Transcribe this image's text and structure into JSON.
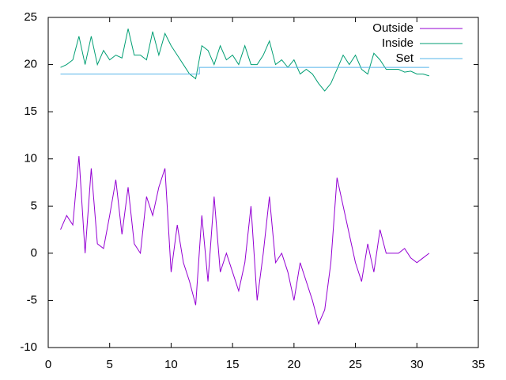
{
  "chart_data": {
    "type": "line",
    "xlim": [
      0,
      35
    ],
    "ylim": [
      -10,
      25
    ],
    "xticks": [
      0,
      5,
      10,
      15,
      20,
      25,
      30,
      35
    ],
    "yticks": [
      -10,
      -5,
      0,
      5,
      10,
      15,
      20,
      25
    ],
    "legend": "top-right",
    "series": [
      {
        "name": "Outside",
        "color": "#9400d3",
        "x": [
          1,
          1.5,
          2,
          2.5,
          3,
          3.5,
          4,
          4.5,
          5,
          5.5,
          6,
          6.5,
          7,
          7.5,
          8,
          8.5,
          9,
          9.5,
          10,
          10.5,
          11,
          11.5,
          12,
          12.5,
          13,
          13.5,
          14,
          14.5,
          15,
          15.5,
          16,
          16.5,
          17,
          17.5,
          18,
          18.5,
          19,
          19.5,
          20,
          20.5,
          21,
          21.5,
          22,
          22.5,
          23,
          23.5,
          24,
          24.5,
          25,
          25.5,
          26,
          26.5,
          27,
          27.5,
          28,
          28.5,
          29,
          29.5,
          30,
          30.5,
          31
        ],
        "values": [
          2.5,
          4,
          3,
          10.3,
          0,
          9,
          1,
          0.5,
          4,
          7.8,
          2,
          7,
          1,
          0,
          6,
          4,
          7,
          9,
          -2,
          3,
          -1,
          -3,
          -5.5,
          4,
          -3,
          6,
          -2,
          0,
          -2,
          -4,
          -1,
          5,
          -5,
          0,
          6,
          -1,
          0,
          -2,
          -5,
          -1,
          -3,
          -5,
          -7.5,
          -6,
          -1,
          8,
          5,
          2,
          -1,
          -3,
          1,
          -2,
          2.5,
          0,
          0,
          0,
          0.5,
          -0.5,
          -1,
          -0.5,
          0
        ]
      },
      {
        "name": "Inside",
        "color": "#009e73",
        "x": [
          1,
          1.5,
          2,
          2.5,
          3,
          3.5,
          4,
          4.5,
          5,
          5.5,
          6,
          6.5,
          7,
          7.5,
          8,
          8.5,
          9,
          9.5,
          10,
          10.5,
          11,
          11.5,
          12,
          12.5,
          13,
          13.5,
          14,
          14.5,
          15,
          15.5,
          16,
          16.5,
          17,
          17.5,
          18,
          18.5,
          19,
          19.5,
          20,
          20.5,
          21,
          21.5,
          22,
          22.5,
          23,
          23.5,
          24,
          24.5,
          25,
          25.5,
          26,
          26.5,
          27,
          27.5,
          28,
          28.5,
          29,
          29.5,
          30,
          30.5,
          31
        ],
        "values": [
          19.7,
          20,
          20.5,
          23,
          20,
          23,
          20,
          21.5,
          20.5,
          21,
          20.7,
          23.8,
          21,
          21,
          20.5,
          23.5,
          21,
          23.3,
          22,
          21,
          20,
          19,
          18.5,
          22,
          21.5,
          20,
          22,
          20.5,
          21,
          20,
          22,
          20,
          20,
          21,
          22.5,
          20,
          20.5,
          19.7,
          20.5,
          19,
          19.5,
          19,
          18,
          17.2,
          18,
          19.5,
          21,
          20,
          21,
          19.5,
          19,
          21.2,
          20.5,
          19.5,
          19.5,
          19.5,
          19.2,
          19.3,
          19,
          19,
          18.8
        ]
      },
      {
        "name": "Set",
        "color": "#56b4e9",
        "x": [
          1,
          12.3,
          12.3,
          31
        ],
        "values": [
          19,
          19,
          19.7,
          19.7
        ]
      }
    ]
  }
}
